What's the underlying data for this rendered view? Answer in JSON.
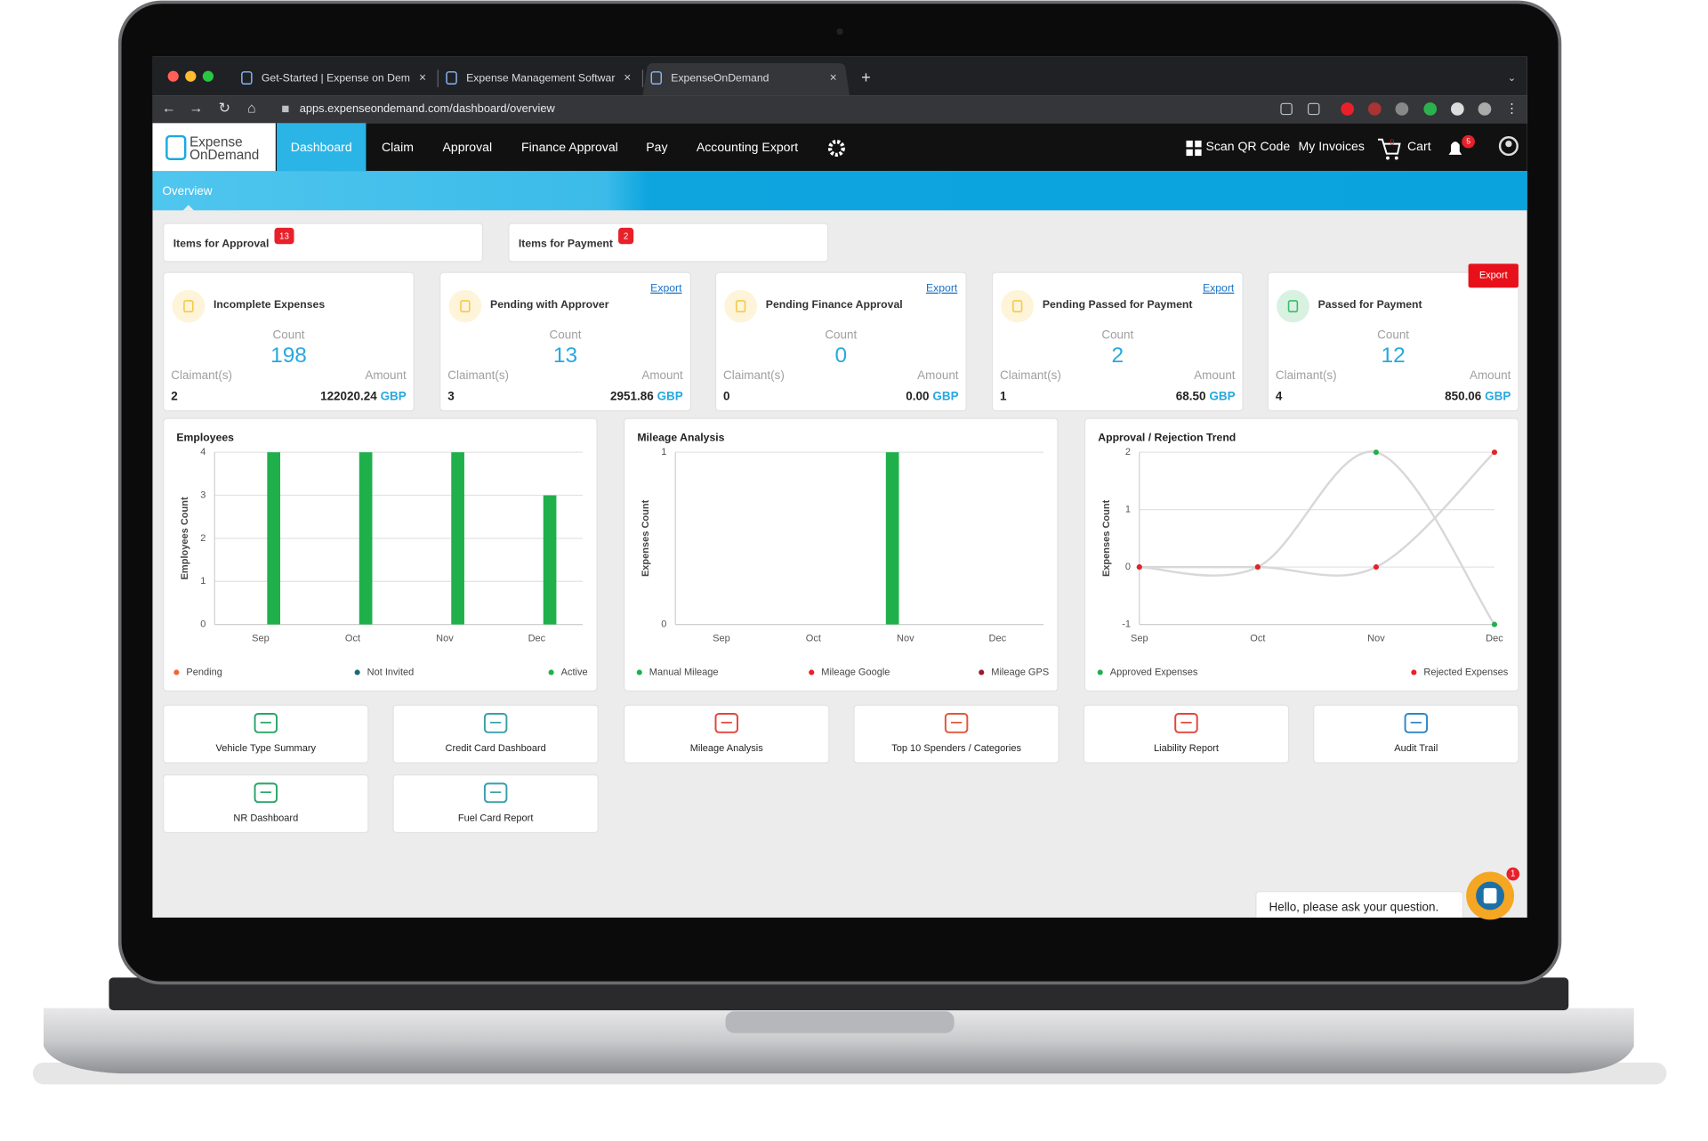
{
  "browser": {
    "tabs": [
      "Get-Started | Expense on Dem",
      "Expense Management Softwar",
      "ExpenseOnDemand"
    ],
    "url": "apps.expenseondemand.com/dashboard/overview"
  },
  "header": {
    "logo": [
      "Expense",
      "OnDemand"
    ],
    "nav": [
      "Dashboard",
      "Claim",
      "Approval",
      "Finance Approval",
      "Pay",
      "Accounting Export"
    ],
    "actions": [
      "Scan QR Code",
      "My Invoices",
      "Cart"
    ],
    "cart_badge": 0,
    "notifications_badge": 5
  },
  "subnav": "Overview",
  "summary": [
    {
      "label": "Items for Approval",
      "badge": 13
    },
    {
      "label": "Items for Payment",
      "badge": 2
    }
  ],
  "cards": [
    {
      "title": "Incomplete Expenses",
      "count_label": "Count",
      "count": 198,
      "claimants_label": "Claimant(s)",
      "claimants": 2,
      "amount_label": "Amount",
      "amount": "122020.24",
      "currency": "GBP",
      "icon_color": "#f7c948"
    },
    {
      "title": "Pending with Approver",
      "export": "Export",
      "count_label": "Count",
      "count": 13,
      "claimants_label": "Claimant(s)",
      "claimants": 3,
      "amount_label": "Amount",
      "amount": "2951.86",
      "currency": "GBP",
      "icon_color": "#f7c948"
    },
    {
      "title": "Pending Finance Approval",
      "export": "Export",
      "count_label": "Count",
      "count": 0,
      "claimants_label": "Claimant(s)",
      "claimants": 0,
      "amount_label": "Amount",
      "amount": "0.00",
      "currency": "GBP",
      "icon_color": "#f7c948"
    },
    {
      "title": "Pending Passed for Payment",
      "export": "Export",
      "count_label": "Count",
      "count": 2,
      "claimants_label": "Claimant(s)",
      "claimants": 1,
      "amount_label": "Amount",
      "amount": "68.50",
      "currency": "GBP",
      "icon_color": "#f7c948"
    },
    {
      "title": "Passed for Payment",
      "export": "Export",
      "export_style": "button",
      "count_label": "Count",
      "count": 12,
      "claimants_label": "Claimant(s)",
      "claimants": 4,
      "amount_label": "Amount",
      "amount": "850.06",
      "currency": "GBP",
      "icon_color": "#3dbb6a"
    }
  ],
  "charts": [
    {
      "type": "bar",
      "title": "Employees",
      "ylabel": "Employees Count",
      "categories": [
        "Sep",
        "Oct",
        "Nov",
        "Dec"
      ],
      "series": [
        {
          "name": "Pending",
          "color": "#f4623a",
          "values": [
            0,
            0,
            0,
            0
          ]
        },
        {
          "name": "Not Invited",
          "color": "#1d6a77",
          "values": [
            0,
            0,
            0,
            0
          ]
        },
        {
          "name": "Active",
          "color": "#1fb04b",
          "values": [
            4,
            4,
            4,
            3
          ]
        }
      ],
      "ylim": [
        0,
        4
      ],
      "yticks": [
        0,
        1,
        2,
        3,
        4
      ],
      "grid": true
    },
    {
      "type": "bar",
      "title": "Mileage Analysis",
      "ylabel": "Expenses Count",
      "categories": [
        "Sep",
        "Oct",
        "Nov",
        "Dec"
      ],
      "series": [
        {
          "name": "Manual Mileage",
          "color": "#1fb04b",
          "values": [
            0,
            0,
            1,
            0
          ]
        },
        {
          "name": "Mileage Google",
          "color": "#e8202a",
          "values": [
            0,
            0,
            0,
            0
          ]
        },
        {
          "name": "Mileage GPS",
          "color": "#9b1b30",
          "values": [
            0,
            0,
            0,
            0
          ]
        }
      ],
      "ylim": [
        0,
        1
      ],
      "yticks": [
        0,
        1
      ],
      "grid": true
    },
    {
      "type": "line",
      "title": "Approval / Rejection Trend",
      "ylabel": "Expenses Count",
      "categories": [
        "Sep",
        "Oct",
        "Nov",
        "Dec"
      ],
      "series": [
        {
          "name": "Approved Expenses",
          "color": "#1fb04b",
          "values": [
            0,
            0,
            2,
            -1
          ]
        },
        {
          "name": "Rejected Expenses",
          "color": "#e8202a",
          "values": [
            0,
            0,
            0,
            2
          ]
        }
      ],
      "ylim": [
        -1,
        2
      ],
      "yticks": [
        -1,
        0,
        1,
        2
      ],
      "grid": true
    }
  ],
  "tiles": [
    {
      "label": "Vehicle Type Summary",
      "color": "#2aa56a"
    },
    {
      "label": "Credit Card Dashboard",
      "color": "#3aa0a8"
    },
    {
      "label": "Mileage Analysis",
      "color": "#e2463a"
    },
    {
      "label": "Top 10 Spenders / Categories",
      "color": "#e2563a"
    },
    {
      "label": "Liability Report",
      "color": "#e2463a"
    },
    {
      "label": "Audit Trail",
      "color": "#2f86c8"
    },
    {
      "label": "NR Dashboard",
      "color": "#2aa56a"
    },
    {
      "label": "Fuel Card Report",
      "color": "#3aa0a8"
    }
  ],
  "chat": {
    "message": "Hello, please ask your question.",
    "badge": 1
  }
}
